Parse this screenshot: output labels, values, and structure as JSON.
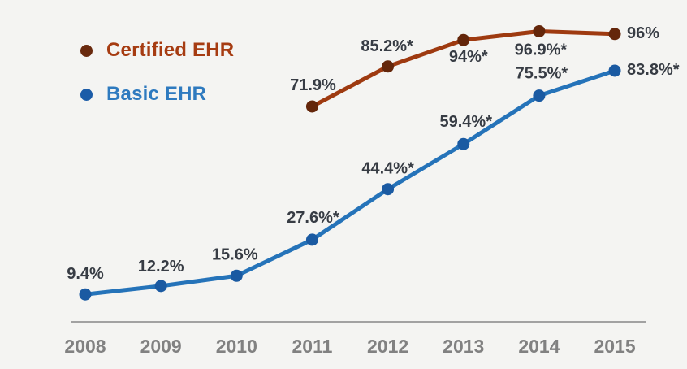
{
  "background_color": "#f4f4f2",
  "legend": {
    "position": "top-left",
    "items": [
      {
        "label": "Certified EHR",
        "text_color": "#a63c12",
        "bullet_color": "#692a0e"
      },
      {
        "label": "Basic EHR",
        "text_color": "#2e7abf",
        "bullet_color": "#1b5ca8"
      }
    ]
  },
  "chart_data": {
    "type": "line",
    "x": [
      2008,
      2009,
      2010,
      2011,
      2012,
      2013,
      2014,
      2015
    ],
    "xticks": [
      "2008",
      "2009",
      "2010",
      "2011",
      "2012",
      "2013",
      "2014",
      "2015"
    ],
    "ylim": [
      0,
      107
    ],
    "grid": false,
    "title": "",
    "xlabel": "",
    "ylabel": "",
    "label_color": "#373c44",
    "axis_color": "#a2a2a2",
    "tick_color": "#818181",
    "series": [
      {
        "name": "Basic EHR",
        "color": "#2573b9",
        "marker_color": "#1a5aa2",
        "start_year": 2008,
        "values": [
          9.4,
          12.2,
          15.6,
          27.6,
          44.4,
          59.4,
          75.5,
          83.8
        ],
        "labels": [
          "9.4%",
          "12.2%",
          "15.6%",
          "27.6%*",
          "44.4%*",
          "59.4%*",
          "75.5%*",
          "83.8%*"
        ],
        "label_pos": [
          {
            "dx": 0,
            "dy": -25,
            "anchor": "middle"
          },
          {
            "dx": 0,
            "dy": -24,
            "anchor": "middle"
          },
          {
            "dx": -2,
            "dy": -26,
            "anchor": "middle"
          },
          {
            "dx": 1,
            "dy": -27,
            "anchor": "middle"
          },
          {
            "dx": 0,
            "dy": -25,
            "anchor": "middle"
          },
          {
            "dx": 3,
            "dy": -27,
            "anchor": "middle"
          },
          {
            "dx": 3,
            "dy": -27,
            "anchor": "middle"
          },
          {
            "dx": 15,
            "dy": -1,
            "anchor": "start"
          }
        ]
      },
      {
        "name": "Certified EHR",
        "color": "#9e3a10",
        "marker_color": "#64260a",
        "start_year": 2011,
        "values": [
          71.9,
          85.2,
          94,
          96.9,
          96
        ],
        "labels": [
          "71.9%",
          "85.2%*",
          "94%*",
          "96.9%*",
          "96%"
        ],
        "label_pos": [
          {
            "dx": 1,
            "dy": -26,
            "anchor": "middle"
          },
          {
            "dx": -1,
            "dy": -25,
            "anchor": "middle"
          },
          {
            "dx": 6,
            "dy": 21,
            "anchor": "middle"
          },
          {
            "dx": 2,
            "dy": 23,
            "anchor": "middle"
          },
          {
            "dx": 15,
            "dy": -1,
            "anchor": "start"
          }
        ]
      }
    ]
  }
}
